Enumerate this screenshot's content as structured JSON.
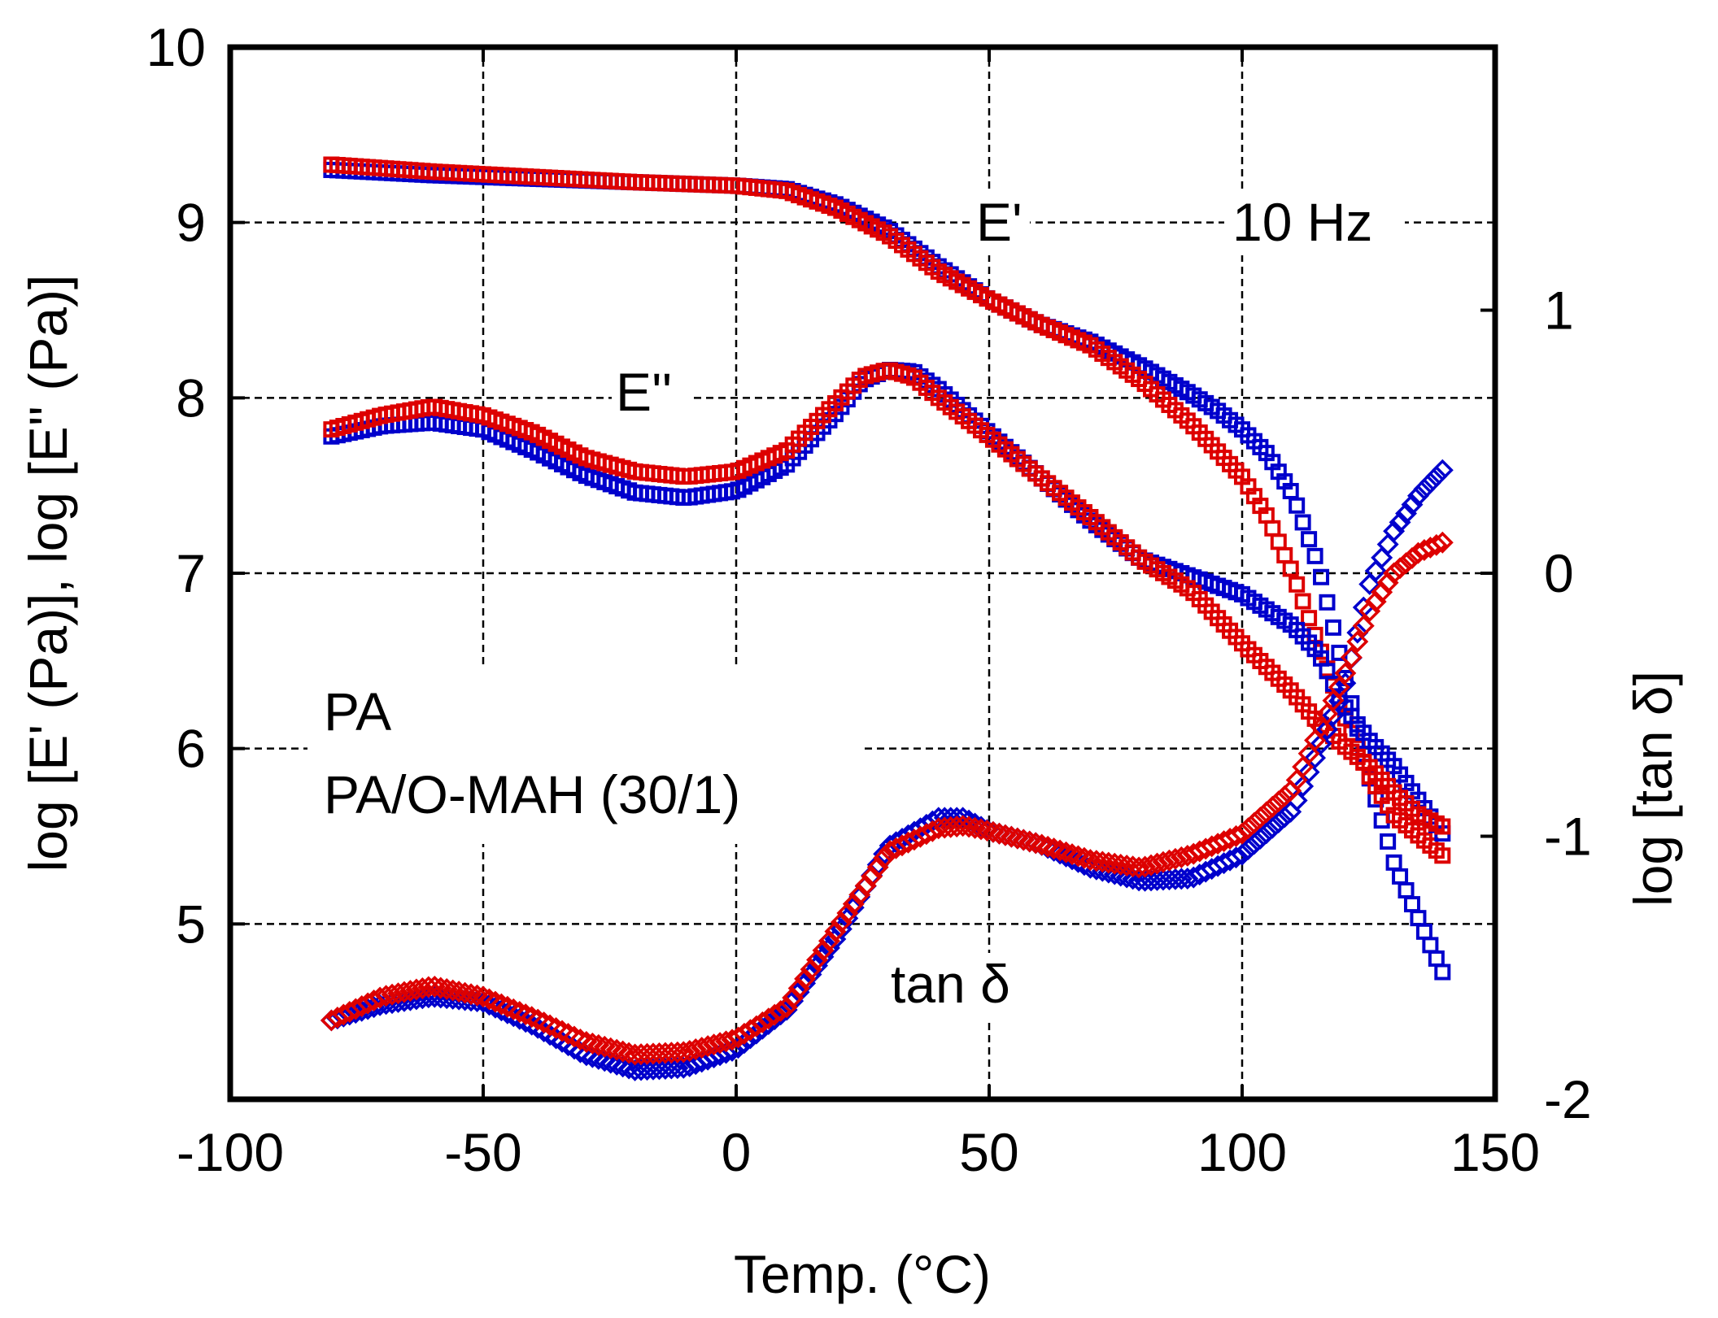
{
  "chart_data": {
    "type": "scatter",
    "xlabel": "Temp. (°C)",
    "ylabel": "log [E' (Pa)], log [E'' (Pa)]",
    "y2label": "log [tan δ]",
    "xlim": [
      -100,
      150
    ],
    "ylim": [
      4,
      10
    ],
    "y2lim": [
      -2,
      2
    ],
    "x_ticks": [
      "-100",
      "-50",
      "0",
      "50",
      "100",
      "150"
    ],
    "y_ticks": [
      "5",
      "6",
      "7",
      "8",
      "9",
      "10"
    ],
    "y2_ticks": [
      "-2",
      "-1",
      "0",
      "1"
    ],
    "grid": true,
    "annotations": {
      "frequency": "10 Hz",
      "storage_modulus": "E'",
      "loss_modulus": "E''",
      "tan_delta": "tan δ"
    },
    "legend": {
      "placement": "left",
      "entries": [
        {
          "label": "PA",
          "color": "#0000cc"
        },
        {
          "label": "PA/O-MAH (30/1)",
          "color": "#dd0000"
        }
      ]
    },
    "series": [
      {
        "name": "PA",
        "quantity": "E'",
        "axis": "left",
        "color": "#0000cc",
        "marker": "square",
        "points": [
          [
            -80,
            9.3
          ],
          [
            -60,
            9.27
          ],
          [
            -40,
            9.25
          ],
          [
            -20,
            9.23
          ],
          [
            0,
            9.21
          ],
          [
            10,
            9.19
          ],
          [
            20,
            9.1
          ],
          [
            30,
            8.96
          ],
          [
            40,
            8.75
          ],
          [
            50,
            8.56
          ],
          [
            60,
            8.42
          ],
          [
            70,
            8.32
          ],
          [
            80,
            8.18
          ],
          [
            90,
            8.02
          ],
          [
            95,
            7.93
          ],
          [
            100,
            7.82
          ],
          [
            105,
            7.68
          ],
          [
            110,
            7.45
          ],
          [
            115,
            7.05
          ],
          [
            120,
            6.45
          ],
          [
            125,
            5.85
          ],
          [
            130,
            5.35
          ],
          [
            135,
            5.02
          ],
          [
            140,
            4.7
          ]
        ]
      },
      {
        "name": "PA/O-MAH (30/1)",
        "quantity": "E'",
        "axis": "left",
        "color": "#dd0000",
        "marker": "square",
        "points": [
          [
            -80,
            9.33
          ],
          [
            -60,
            9.29
          ],
          [
            -40,
            9.26
          ],
          [
            -20,
            9.23
          ],
          [
            0,
            9.21
          ],
          [
            10,
            9.18
          ],
          [
            20,
            9.08
          ],
          [
            30,
            8.93
          ],
          [
            40,
            8.72
          ],
          [
            50,
            8.56
          ],
          [
            60,
            8.42
          ],
          [
            70,
            8.3
          ],
          [
            80,
            8.1
          ],
          [
            90,
            7.85
          ],
          [
            100,
            7.55
          ],
          [
            105,
            7.32
          ],
          [
            110,
            7.0
          ],
          [
            115,
            6.6
          ],
          [
            120,
            6.2
          ],
          [
            125,
            5.85
          ],
          [
            130,
            5.62
          ],
          [
            135,
            5.5
          ],
          [
            140,
            5.38
          ]
        ]
      },
      {
        "name": "PA",
        "quantity": "E''",
        "axis": "left",
        "color": "#0000cc",
        "marker": "square",
        "points": [
          [
            -80,
            7.78
          ],
          [
            -70,
            7.84
          ],
          [
            -60,
            7.86
          ],
          [
            -50,
            7.82
          ],
          [
            -40,
            7.7
          ],
          [
            -30,
            7.56
          ],
          [
            -20,
            7.46
          ],
          [
            -10,
            7.43
          ],
          [
            0,
            7.47
          ],
          [
            10,
            7.62
          ],
          [
            20,
            7.92
          ],
          [
            25,
            8.1
          ],
          [
            30,
            8.16
          ],
          [
            35,
            8.15
          ],
          [
            40,
            8.05
          ],
          [
            50,
            7.8
          ],
          [
            60,
            7.55
          ],
          [
            70,
            7.3
          ],
          [
            80,
            7.08
          ],
          [
            90,
            6.98
          ],
          [
            100,
            6.88
          ],
          [
            110,
            6.7
          ],
          [
            115,
            6.55
          ],
          [
            120,
            6.25
          ],
          [
            125,
            6.05
          ],
          [
            130,
            5.9
          ],
          [
            135,
            5.7
          ],
          [
            140,
            5.5
          ]
        ]
      },
      {
        "name": "PA/O-MAH (30/1)",
        "quantity": "E''",
        "axis": "left",
        "color": "#dd0000",
        "marker": "square",
        "points": [
          [
            -80,
            7.82
          ],
          [
            -70,
            7.9
          ],
          [
            -60,
            7.95
          ],
          [
            -50,
            7.9
          ],
          [
            -40,
            7.8
          ],
          [
            -30,
            7.66
          ],
          [
            -20,
            7.58
          ],
          [
            -10,
            7.55
          ],
          [
            0,
            7.58
          ],
          [
            10,
            7.7
          ],
          [
            20,
            7.98
          ],
          [
            25,
            8.12
          ],
          [
            30,
            8.16
          ],
          [
            35,
            8.12
          ],
          [
            40,
            8.0
          ],
          [
            50,
            7.78
          ],
          [
            60,
            7.55
          ],
          [
            70,
            7.32
          ],
          [
            80,
            7.08
          ],
          [
            90,
            6.9
          ],
          [
            100,
            6.6
          ],
          [
            110,
            6.32
          ],
          [
            115,
            6.15
          ],
          [
            120,
            6.02
          ],
          [
            125,
            5.9
          ],
          [
            130,
            5.75
          ],
          [
            135,
            5.62
          ],
          [
            140,
            5.55
          ]
        ]
      },
      {
        "name": "PA",
        "quantity": "tan δ",
        "axis": "right",
        "color": "#0000cc",
        "marker": "diamond",
        "points": [
          [
            -80,
            -1.7
          ],
          [
            -70,
            -1.64
          ],
          [
            -60,
            -1.61
          ],
          [
            -50,
            -1.63
          ],
          [
            -40,
            -1.72
          ],
          [
            -30,
            -1.83
          ],
          [
            -20,
            -1.89
          ],
          [
            -10,
            -1.88
          ],
          [
            0,
            -1.81
          ],
          [
            10,
            -1.66
          ],
          [
            20,
            -1.38
          ],
          [
            30,
            -1.04
          ],
          [
            40,
            -0.93
          ],
          [
            45,
            -0.93
          ],
          [
            50,
            -0.98
          ],
          [
            60,
            -1.03
          ],
          [
            70,
            -1.12
          ],
          [
            80,
            -1.17
          ],
          [
            90,
            -1.16
          ],
          [
            100,
            -1.07
          ],
          [
            110,
            -0.9
          ],
          [
            120,
            -0.45
          ],
          [
            125,
            -0.05
          ],
          [
            130,
            0.16
          ],
          [
            135,
            0.3
          ],
          [
            140,
            0.4
          ]
        ]
      },
      {
        "name": "PA/O-MAH (30/1)",
        "quantity": "tan δ",
        "axis": "right",
        "color": "#dd0000",
        "marker": "diamond",
        "points": [
          [
            -80,
            -1.7
          ],
          [
            -70,
            -1.61
          ],
          [
            -60,
            -1.57
          ],
          [
            -50,
            -1.61
          ],
          [
            -40,
            -1.69
          ],
          [
            -30,
            -1.78
          ],
          [
            -20,
            -1.83
          ],
          [
            -10,
            -1.82
          ],
          [
            0,
            -1.77
          ],
          [
            10,
            -1.65
          ],
          [
            20,
            -1.35
          ],
          [
            30,
            -1.06
          ],
          [
            40,
            -0.97
          ],
          [
            45,
            -0.96
          ],
          [
            50,
            -0.98
          ],
          [
            60,
            -1.03
          ],
          [
            70,
            -1.09
          ],
          [
            80,
            -1.12
          ],
          [
            90,
            -1.07
          ],
          [
            100,
            -0.99
          ],
          [
            110,
            -0.82
          ],
          [
            120,
            -0.4
          ],
          [
            125,
            -0.15
          ],
          [
            130,
            0.0
          ],
          [
            135,
            0.08
          ],
          [
            140,
            0.12
          ]
        ]
      }
    ]
  }
}
